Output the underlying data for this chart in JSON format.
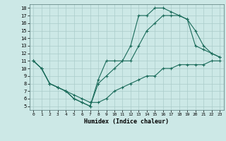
{
  "xlabel": "Humidex (Indice chaleur)",
  "bg_color": "#cce8e6",
  "grid_color": "#aaccca",
  "line_color": "#1a6b5a",
  "xlim": [
    -0.5,
    23.5
  ],
  "ylim": [
    4.5,
    18.5
  ],
  "xticks": [
    0,
    1,
    2,
    3,
    4,
    5,
    6,
    7,
    8,
    9,
    10,
    11,
    12,
    13,
    14,
    15,
    16,
    17,
    18,
    19,
    20,
    21,
    22,
    23
  ],
  "yticks": [
    5,
    6,
    7,
    8,
    9,
    10,
    11,
    12,
    13,
    14,
    15,
    16,
    17,
    18
  ],
  "line1_x": [
    0,
    1,
    2,
    3,
    4,
    5,
    6,
    7,
    8,
    9,
    10,
    11,
    12,
    13,
    14,
    15,
    16,
    17,
    18,
    19,
    20,
    21,
    22,
    23
  ],
  "line1_y": [
    11,
    10,
    8,
    7.5,
    7,
    6,
    5.5,
    5,
    8.5,
    11,
    11,
    11,
    13,
    17,
    17,
    18,
    18,
    17.5,
    17,
    16.5,
    15,
    13,
    12,
    11.5
  ],
  "line2_x": [
    0,
    1,
    2,
    3,
    4,
    5,
    6,
    7,
    8,
    9,
    10,
    11,
    12,
    13,
    14,
    15,
    16,
    17,
    18,
    19,
    20,
    21,
    22,
    23
  ],
  "line2_y": [
    11,
    10,
    8,
    7.5,
    7,
    6,
    5.5,
    5,
    8,
    9,
    10,
    11,
    11,
    13,
    15,
    16,
    17,
    17,
    17,
    16.5,
    13,
    12.5,
    12,
    11.5
  ],
  "line3_x": [
    0,
    1,
    2,
    3,
    4,
    5,
    6,
    7,
    8,
    9,
    10,
    11,
    12,
    13,
    14,
    15,
    16,
    17,
    18,
    19,
    20,
    21,
    22,
    23
  ],
  "line3_y": [
    11,
    10,
    8,
    7.5,
    7,
    6.5,
    6,
    5.5,
    5.5,
    6,
    7,
    7.5,
    8,
    8.5,
    9,
    9,
    10,
    10,
    10.5,
    10.5,
    10.5,
    10.5,
    11,
    11
  ]
}
